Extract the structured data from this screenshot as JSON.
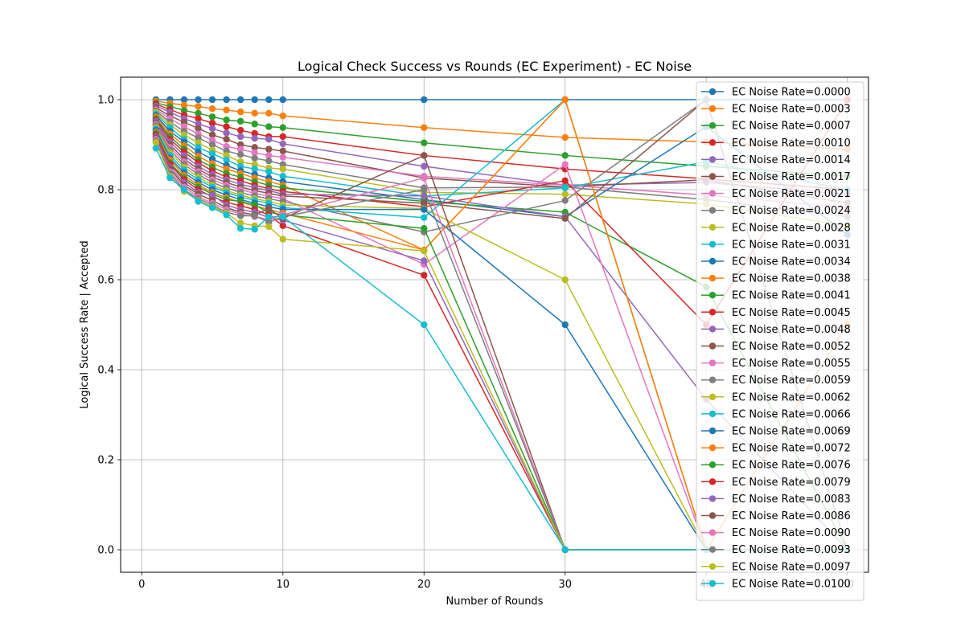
{
  "chart_data": {
    "type": "line",
    "title": "Logical Check Success vs Rounds (EC Experiment) - EC Noise",
    "xlabel": "Number of Rounds",
    "ylabel": "Logical Success Rate | Accepted",
    "xlim": [
      -1.5,
      51.5
    ],
    "ylim": [
      -0.05,
      1.05
    ],
    "xticks": [
      0,
      10,
      20,
      30,
      40,
      50
    ],
    "yticks": [
      0.0,
      0.2,
      0.4,
      0.6,
      0.8,
      1.0
    ],
    "xtick_labels": [
      "0",
      "10",
      "20",
      "30",
      "40",
      "50"
    ],
    "ytick_labels": [
      "0.0",
      "0.2",
      "0.4",
      "0.6",
      "0.8",
      "1.0"
    ],
    "grid": true,
    "legend_position": "right",
    "x": [
      1,
      2,
      3,
      4,
      5,
      6,
      7,
      8,
      9,
      10,
      20,
      30,
      40,
      50
    ],
    "series": [
      {
        "name": "EC Noise Rate=0.0000",
        "color": "#1f77b4",
        "values": [
          1.0,
          1.0,
          1.0,
          1.0,
          1.0,
          1.0,
          1.0,
          1.0,
          1.0,
          1.0,
          1.0,
          1.0,
          1.0,
          1.0
        ]
      },
      {
        "name": "EC Noise Rate=0.0003",
        "color": "#ff7f0e",
        "values": [
          0.997,
          0.992,
          0.988,
          0.985,
          0.98,
          0.977,
          0.973,
          0.97,
          0.97,
          0.964,
          0.938,
          0.916,
          0.906,
          0.89
        ]
      },
      {
        "name": "EC Noise Rate=0.0007",
        "color": "#2ca02c",
        "values": [
          0.993,
          0.985,
          0.976,
          0.97,
          0.962,
          0.955,
          0.952,
          0.946,
          0.94,
          0.938,
          0.904,
          0.876,
          0.852,
          0.83
        ]
      },
      {
        "name": "EC Noise Rate=0.0010",
        "color": "#d62728",
        "values": [
          0.99,
          0.978,
          0.966,
          0.958,
          0.948,
          0.94,
          0.932,
          0.925,
          0.918,
          0.918,
          0.876,
          0.846,
          0.824,
          0.8
        ]
      },
      {
        "name": "EC Noise Rate=0.0014",
        "color": "#9467bd",
        "values": [
          0.986,
          0.972,
          0.958,
          0.946,
          0.936,
          0.926,
          0.918,
          0.914,
          0.912,
          0.902,
          0.852,
          0.81,
          0.816,
          0.79
        ]
      },
      {
        "name": "EC Noise Rate=0.0017",
        "color": "#8c564b",
        "values": [
          0.982,
          0.964,
          0.95,
          0.936,
          0.922,
          0.912,
          0.9,
          0.894,
          0.89,
          0.886,
          0.826,
          0.806,
          0.822,
          0.77
        ]
      },
      {
        "name": "EC Noise Rate=0.0021",
        "color": "#e377c2",
        "values": [
          0.978,
          0.958,
          0.94,
          0.924,
          0.91,
          0.896,
          0.89,
          0.882,
          0.876,
          0.872,
          0.83,
          0.81,
          0.788,
          0.76
        ]
      },
      {
        "name": "EC Noise Rate=0.0024",
        "color": "#7f7f7f",
        "values": [
          0.975,
          0.95,
          0.93,
          0.915,
          0.9,
          0.886,
          0.878,
          0.87,
          0.864,
          0.856,
          0.804,
          0.806,
          0.778,
          0.74
        ]
      },
      {
        "name": "EC Noise Rate=0.0028",
        "color": "#bcbd22",
        "values": [
          0.972,
          0.944,
          0.922,
          0.904,
          0.888,
          0.876,
          0.862,
          0.856,
          0.848,
          0.846,
          0.794,
          0.79,
          0.768,
          0.72
        ]
      },
      {
        "name": "EC Noise Rate=0.0031",
        "color": "#17becf",
        "values": [
          0.968,
          0.938,
          0.912,
          0.894,
          0.88,
          0.866,
          0.852,
          0.846,
          0.84,
          0.83,
          0.786,
          0.804,
          0.862,
          0.8
        ]
      },
      {
        "name": "EC Noise Rate=0.0034",
        "color": "#1f77b4",
        "values": [
          0.965,
          0.93,
          0.906,
          0.884,
          0.868,
          0.854,
          0.842,
          0.834,
          0.826,
          0.818,
          0.778,
          0.74,
          0.94,
          0.7
        ]
      },
      {
        "name": "EC Noise Rate=0.0038",
        "color": "#ff7f0e",
        "values": [
          0.962,
          0.924,
          0.898,
          0.874,
          0.858,
          0.846,
          0.836,
          0.826,
          0.818,
          0.81,
          0.666,
          1.0,
          0.0,
          0.5
        ]
      },
      {
        "name": "EC Noise Rate=0.0041",
        "color": "#2ca02c",
        "values": [
          0.958,
          0.918,
          0.89,
          0.866,
          0.85,
          0.836,
          0.828,
          0.818,
          0.81,
          0.804,
          0.774,
          0.75,
          0.584,
          0.0
        ]
      },
      {
        "name": "EC Noise Rate=0.0045",
        "color": "#d62728",
        "values": [
          0.955,
          0.912,
          0.884,
          0.86,
          0.842,
          0.828,
          0.82,
          0.81,
          0.802,
          0.796,
          0.762,
          0.82,
          0.5,
          1.0
        ]
      },
      {
        "name": "EC Noise Rate=0.0048",
        "color": "#9467bd",
        "values": [
          0.952,
          0.906,
          0.876,
          0.852,
          0.834,
          0.822,
          0.812,
          0.804,
          0.798,
          0.79,
          0.786,
          0.74,
          0.334,
          0.0
        ]
      },
      {
        "name": "EC Noise Rate=0.0052",
        "color": "#8c564b",
        "values": [
          0.948,
          0.9,
          0.868,
          0.846,
          0.828,
          0.816,
          0.806,
          0.798,
          0.792,
          0.786,
          0.77,
          0.736,
          1.0,
          0.0
        ]
      },
      {
        "name": "EC Noise Rate=0.0055",
        "color": "#e377c2",
        "values": [
          0.945,
          0.894,
          0.862,
          0.84,
          0.822,
          0.81,
          0.8,
          0.792,
          0.786,
          0.78,
          0.634,
          0.856,
          0.0,
          0.0
        ]
      },
      {
        "name": "EC Noise Rate=0.0059",
        "color": "#7f7f7f",
        "values": [
          0.942,
          0.888,
          0.856,
          0.834,
          0.816,
          0.804,
          0.794,
          0.786,
          0.78,
          0.774,
          0.706,
          0.776,
          1.0,
          0.0
        ]
      },
      {
        "name": "EC Noise Rate=0.0062",
        "color": "#bcbd22",
        "values": [
          0.938,
          0.882,
          0.85,
          0.828,
          0.81,
          0.798,
          0.788,
          0.78,
          0.774,
          0.766,
          0.758,
          0.6,
          0.0,
          0.0
        ]
      },
      {
        "name": "EC Noise Rate=0.0066",
        "color": "#17becf",
        "values": [
          0.935,
          0.876,
          0.844,
          0.822,
          0.806,
          0.794,
          0.784,
          0.776,
          0.77,
          0.76,
          0.738,
          1.0,
          0.0,
          0.0
        ]
      },
      {
        "name": "EC Noise Rate=0.0069",
        "color": "#1f77b4",
        "values": [
          0.932,
          0.87,
          0.838,
          0.816,
          0.8,
          0.788,
          0.778,
          0.77,
          0.762,
          0.756,
          0.756,
          0.5,
          0.0,
          0.0
        ]
      },
      {
        "name": "EC Noise Rate=0.0072",
        "color": "#ff7f0e",
        "values": [
          0.928,
          0.866,
          0.832,
          0.81,
          0.794,
          0.782,
          0.772,
          0.764,
          0.756,
          0.748,
          0.666,
          1.0,
          0.0,
          0.0
        ]
      },
      {
        "name": "EC Noise Rate=0.0076",
        "color": "#2ca02c",
        "values": [
          0.925,
          0.86,
          0.826,
          0.806,
          0.79,
          0.778,
          0.774,
          0.766,
          0.75,
          0.744,
          0.714,
          0.0,
          0.0,
          0.0
        ]
      },
      {
        "name": "EC Noise Rate=0.0079",
        "color": "#d62728",
        "values": [
          0.922,
          0.856,
          0.822,
          0.8,
          0.784,
          0.772,
          0.764,
          0.756,
          0.744,
          0.72,
          0.61,
          0.0,
          0.0,
          0.0
        ]
      },
      {
        "name": "EC Noise Rate=0.0083",
        "color": "#9467bd",
        "values": [
          0.918,
          0.85,
          0.816,
          0.794,
          0.788,
          0.766,
          0.756,
          0.75,
          0.738,
          0.732,
          0.642,
          0.0,
          0.0,
          0.0
        ]
      },
      {
        "name": "EC Noise Rate=0.0086",
        "color": "#8c564b",
        "values": [
          0.915,
          0.846,
          0.81,
          0.79,
          0.776,
          0.76,
          0.75,
          0.744,
          0.758,
          0.736,
          0.876,
          0.0,
          0.0,
          0.0
        ]
      },
      {
        "name": "EC Noise Rate=0.0090",
        "color": "#e377c2",
        "values": [
          0.912,
          0.84,
          0.806,
          0.784,
          0.77,
          0.756,
          0.746,
          0.74,
          0.734,
          0.744,
          0.826,
          0.0,
          0.0,
          0.0
        ]
      },
      {
        "name": "EC Noise Rate=0.0093",
        "color": "#7f7f7f",
        "values": [
          0.908,
          0.836,
          0.8,
          0.78,
          0.766,
          0.75,
          0.742,
          0.742,
          0.728,
          0.74,
          0.8,
          0.0,
          0.0,
          0.0
        ]
      },
      {
        "name": "EC Noise Rate=0.0097",
        "color": "#bcbd22",
        "values": [
          0.905,
          0.83,
          0.796,
          0.776,
          0.762,
          0.748,
          0.726,
          0.72,
          0.718,
          0.69,
          0.664,
          0.0,
          0.0,
          0.0
        ]
      },
      {
        "name": "EC Noise Rate=0.0100",
        "color": "#17becf",
        "values": [
          0.892,
          0.826,
          0.8,
          0.774,
          0.76,
          0.744,
          0.714,
          0.712,
          0.74,
          0.74,
          0.5,
          0.0,
          0.0,
          0.0
        ]
      }
    ]
  }
}
